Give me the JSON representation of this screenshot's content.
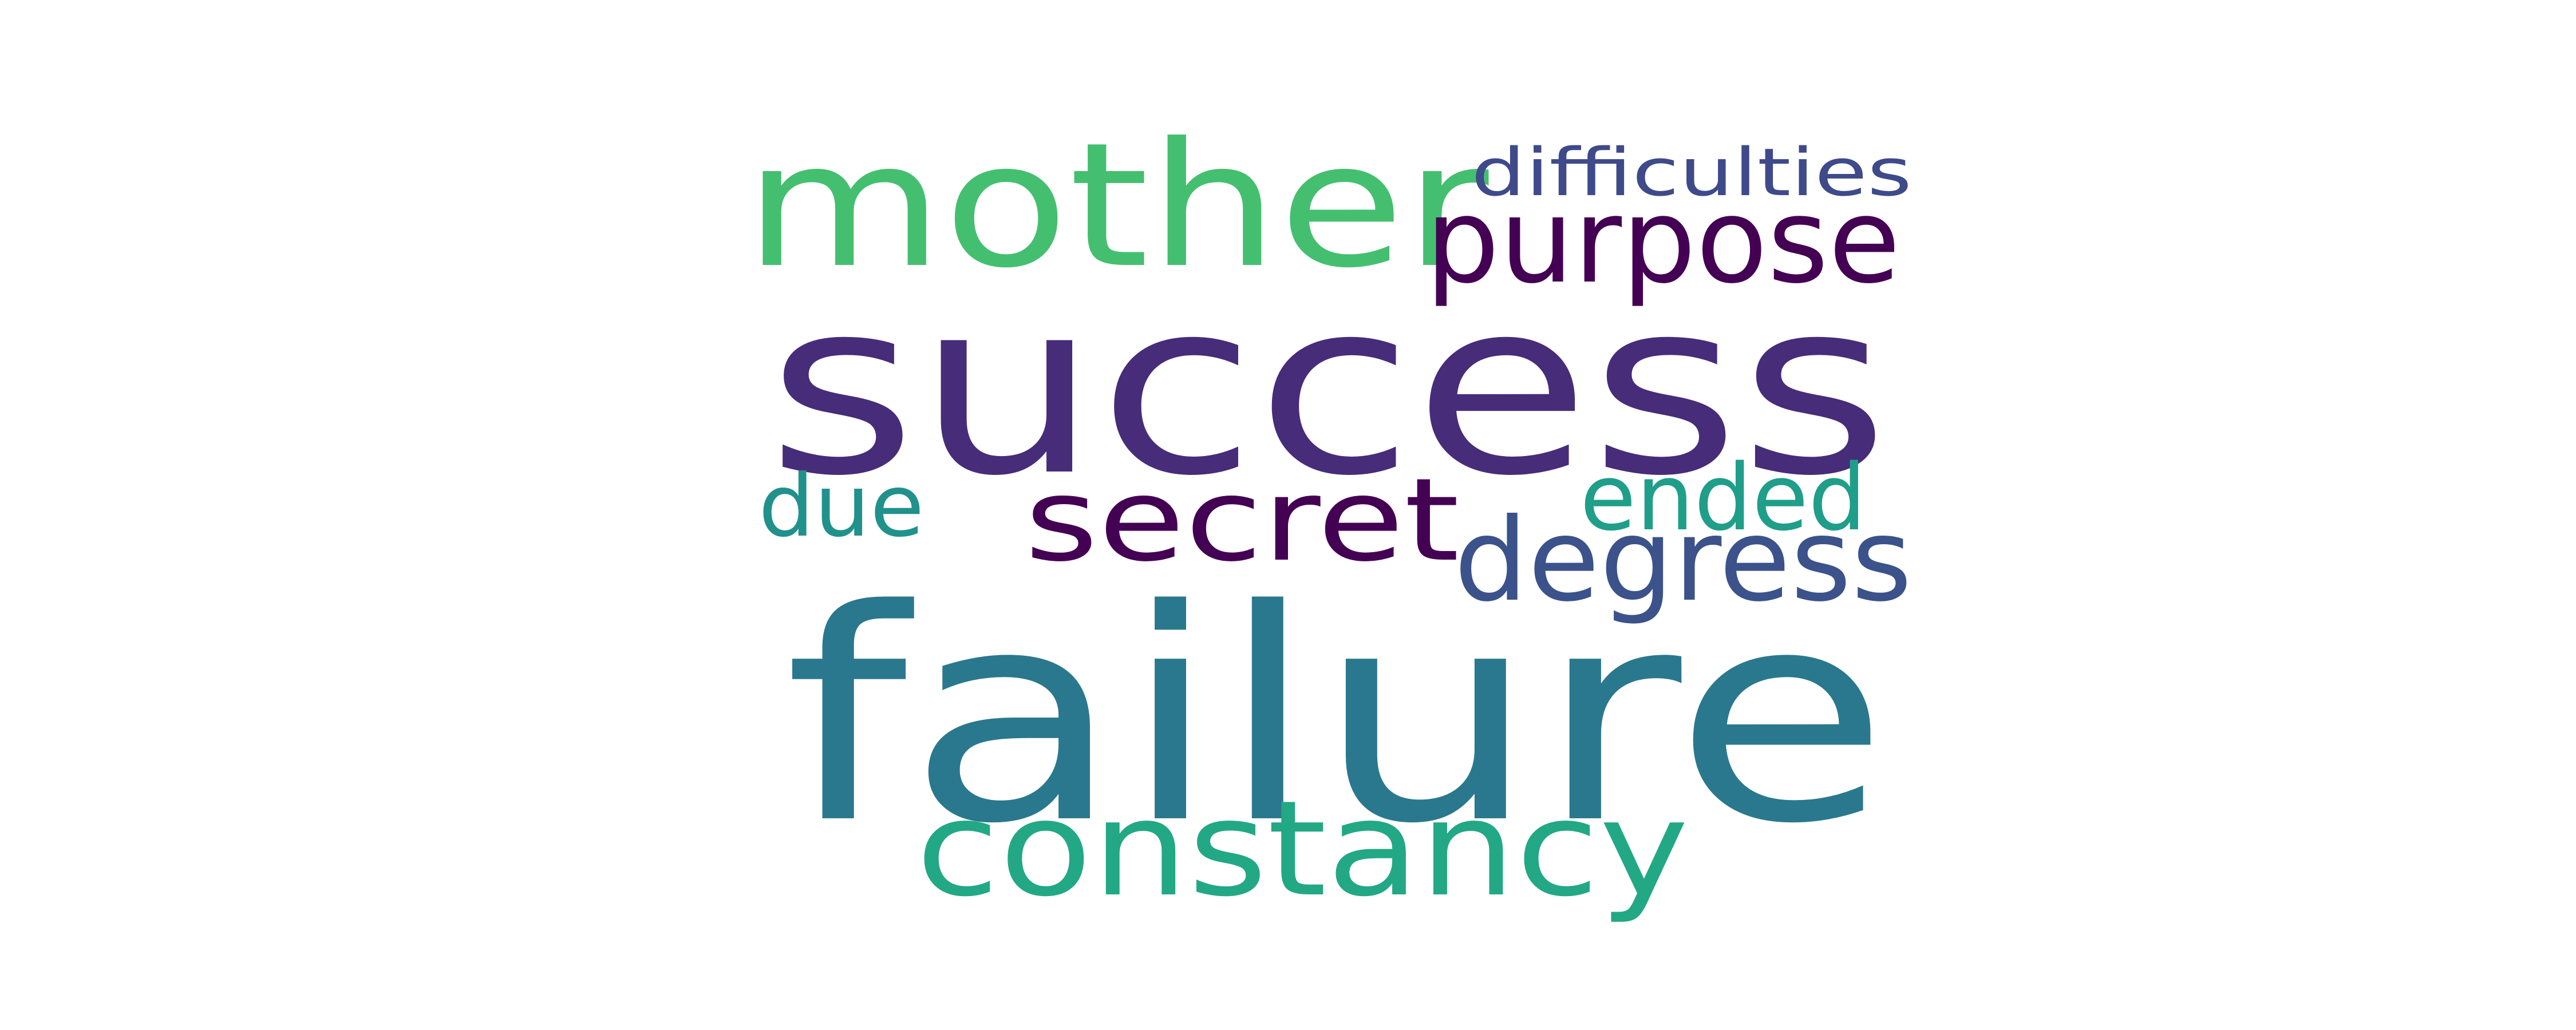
{
  "words": [
    {
      "id": "success",
      "text": "success",
      "color": "#472c7a"
    },
    {
      "id": "failure",
      "text": "failure",
      "color": "#2a788e"
    },
    {
      "id": "mother",
      "text": "mother",
      "color": "#44bf70"
    },
    {
      "id": "constancy",
      "text": "constancy",
      "color": "#22a884"
    },
    {
      "id": "purpose",
      "text": "purpose",
      "color": "#440154"
    },
    {
      "id": "secret",
      "text": "secret",
      "color": "#440154"
    },
    {
      "id": "degress",
      "text": "degress",
      "color": "#3b528b"
    },
    {
      "id": "ended",
      "text": "ended",
      "color": "#1f9e89"
    },
    {
      "id": "due",
      "text": "due",
      "color": "#21918c"
    },
    {
      "id": "difficulties",
      "text": "difficulties",
      "color": "#3e4a89"
    }
  ]
}
